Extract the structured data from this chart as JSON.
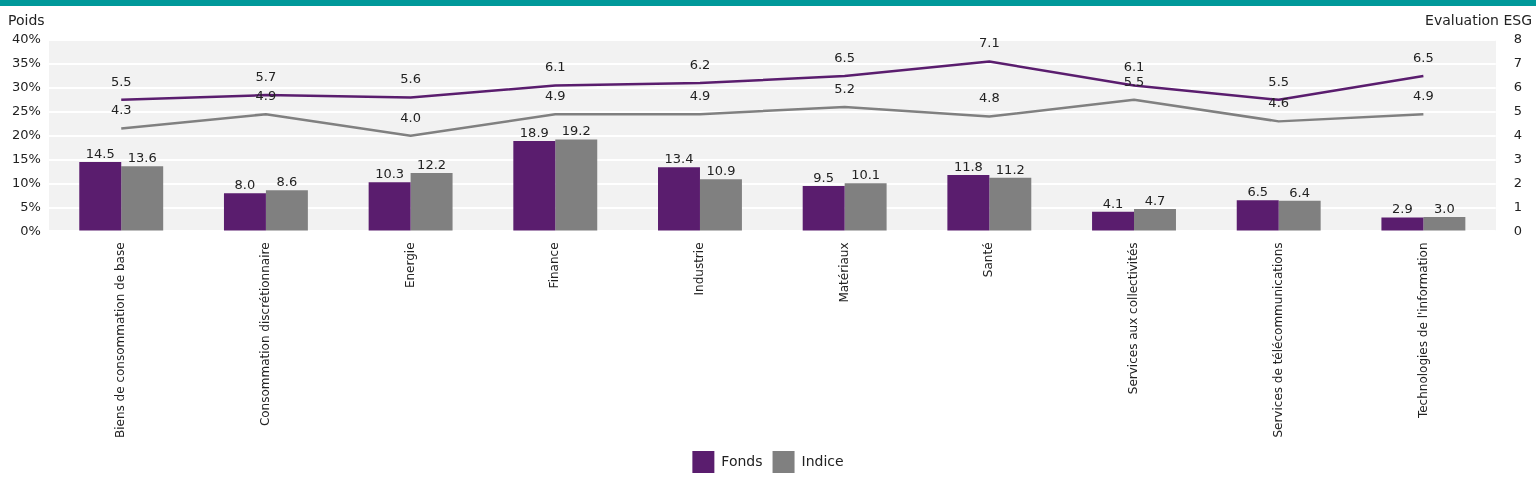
{
  "chart_data": {
    "type": "bar",
    "ylabel": "Poids",
    "y2label": "Evaluation ESG",
    "categories": [
      "Biens de consommation de base",
      "Consommation discrétionnaire",
      "Energie",
      "Finance",
      "Industrie",
      "Matériaux",
      "Santé",
      "Services aux collectivités",
      "Services de télécommunications",
      "Technologies de l'information"
    ],
    "series": [
      {
        "name": "Fonds",
        "color": "#5a1d6e",
        "values": [
          14.5,
          8.0,
          10.3,
          18.9,
          13.4,
          9.5,
          11.8,
          4.1,
          6.5,
          2.9
        ],
        "value_labels": [
          "14.5",
          "8.0",
          "10.3",
          "18.9",
          "13.4",
          "9.5",
          "11.8",
          "4.1",
          "6.5",
          "2.9"
        ]
      },
      {
        "name": "Indice",
        "color": "#808080",
        "values": [
          13.6,
          8.6,
          12.2,
          19.2,
          10.9,
          10.1,
          11.2,
          4.7,
          6.4,
          3.0
        ],
        "value_labels": [
          "13.6",
          "8.6",
          "12.2",
          "19.2",
          "10.9",
          "10.1",
          "11.2",
          "4.7",
          "6.4",
          "3.0"
        ]
      },
      {
        "type": "line",
        "axis": "y2",
        "color": "#5a1d6e",
        "values": [
          5.5,
          5.7,
          5.6,
          6.1,
          6.2,
          6.5,
          7.1,
          6.1,
          5.5,
          6.5
        ],
        "value_labels": [
          "5.5",
          "5.7",
          "5.6",
          "6.1",
          "6.2",
          "6.5",
          "7.1",
          "6.1",
          "5.5",
          "6.5"
        ]
      },
      {
        "type": "line",
        "axis": "y2",
        "color": "#808080",
        "values": [
          4.3,
          4.9,
          4.0,
          4.9,
          4.9,
          5.2,
          4.8,
          5.5,
          4.6,
          4.9
        ],
        "value_labels": [
          "4.3",
          "4.9",
          "4.0",
          "4.9",
          "4.9",
          "5.2",
          "4.8",
          "5.5",
          "4.6",
          "4.9"
        ]
      }
    ],
    "ylim": [
      0,
      40
    ],
    "yticks": [
      {
        "value": 0,
        "label": "0%"
      },
      {
        "value": 5,
        "label": "5%"
      },
      {
        "value": 10,
        "label": "10%"
      },
      {
        "value": 15,
        "label": "15%"
      },
      {
        "value": 20,
        "label": "20%"
      },
      {
        "value": 25,
        "label": "25%"
      },
      {
        "value": 30,
        "label": "30%"
      },
      {
        "value": 35,
        "label": "35%"
      },
      {
        "value": 40,
        "label": "40%"
      }
    ],
    "y2lim": [
      0,
      8
    ],
    "y2ticks": [
      0,
      1,
      2,
      3,
      4,
      5,
      6,
      7,
      8
    ],
    "grid": "y",
    "legend": "bottom",
    "marker": "none"
  }
}
